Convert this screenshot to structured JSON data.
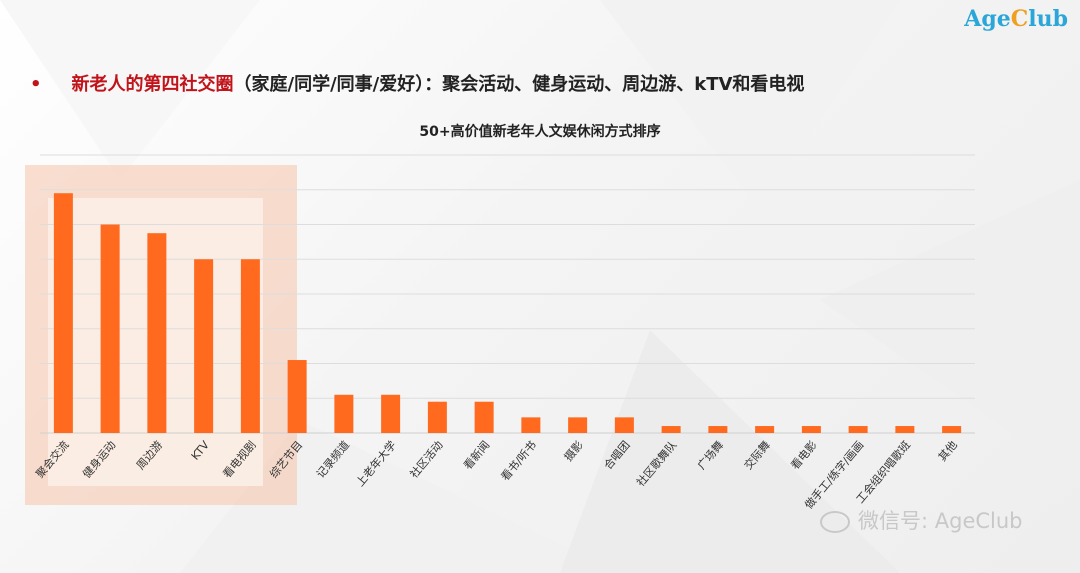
{
  "brand": {
    "prefix": "Age",
    "accent_letter": "C",
    "suffix": "lub"
  },
  "headline": {
    "bullet": "•",
    "highlight": "新老人的第四社交圈",
    "rest": "（家庭/同学/同事/爱好）：聚会活动、健身运动、周边游、kTV和看电视"
  },
  "watermark": "微信号: AgeClub",
  "colors": {
    "bar": "#ff6a1f",
    "highlight_box": "#f6c9b3",
    "headline_red": "#c0131a",
    "logo_blue": "#2aa6d9",
    "logo_orange": "#f0a020"
  },
  "chart_data": {
    "type": "bar",
    "title": "50+高价值新老年人文娱休闲方式排序",
    "categories": [
      "聚会交流",
      "健身运动",
      "周边游",
      "KTV",
      "看电视剧",
      "综艺节目",
      "记录频道",
      "上老年大学",
      "社区活动",
      "看新闻",
      "看书/听书",
      "摄影",
      "合唱团",
      "社区歌舞队",
      "广场舞",
      "交际舞",
      "看电影",
      "做手工/练字/画画",
      "工会组织唱歌班",
      "其他"
    ],
    "values": [
      69,
      60,
      57.5,
      50,
      50,
      21,
      11,
      11,
      9,
      9,
      4.5,
      4.5,
      4.5,
      2,
      2,
      2,
      2,
      2,
      2,
      2
    ],
    "ylim": [
      0,
      80
    ],
    "grid": true,
    "highlighted_categories": [
      "聚会交流",
      "健身运动",
      "周边游",
      "KTV",
      "看电视剧"
    ]
  }
}
